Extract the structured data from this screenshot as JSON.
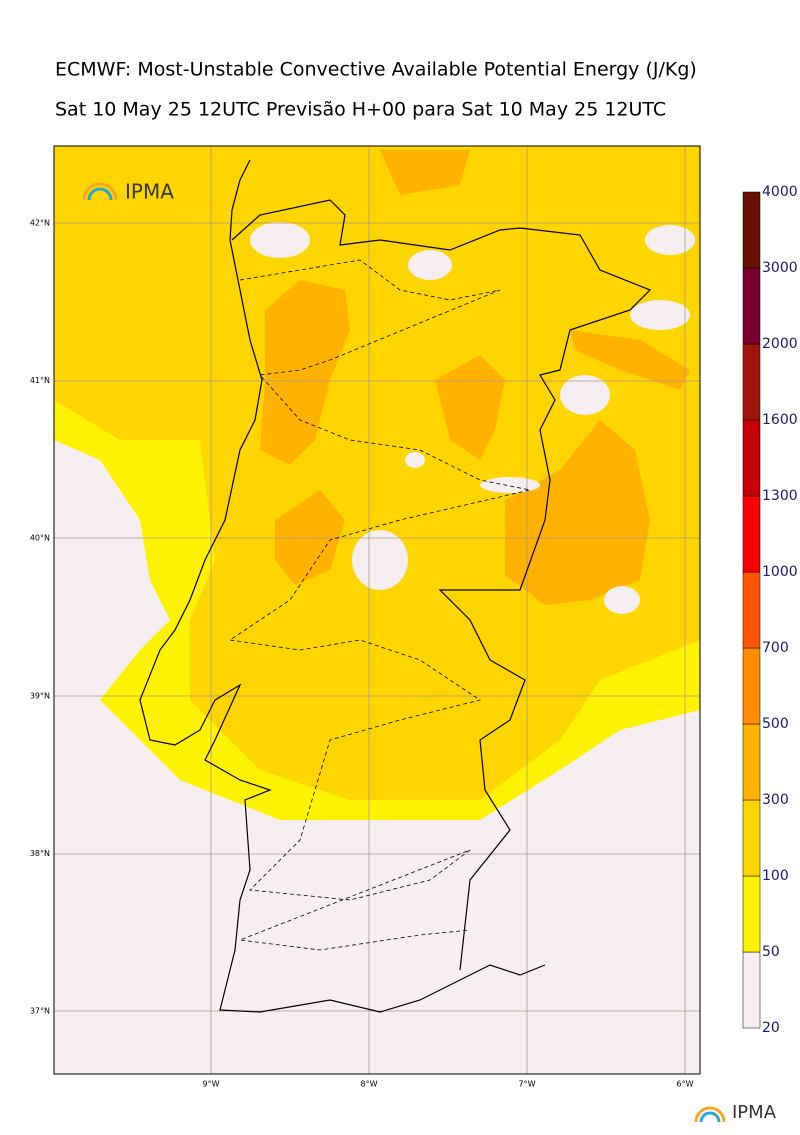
{
  "header": {
    "title": "ECMWF: Most-Unstable Convective Available Potential Energy (J/Kg)",
    "subtitle": "Sat 10 May 25 12UTC Previsão H+00 para Sat 10 May 25 12UTC"
  },
  "map": {
    "lat_labels": [
      "42°N",
      "41°N",
      "40°N",
      "39°N",
      "38°N",
      "37°N"
    ],
    "lon_labels": [
      "9°W",
      "8°W",
      "7°W",
      "6°W"
    ],
    "logo": "IPMA"
  },
  "colorbar": {
    "labels": [
      "20",
      "50",
      "100",
      "300",
      "500",
      "700",
      "1000",
      "1300",
      "1600",
      "2000",
      "3000",
      "4000"
    ],
    "colors": [
      "#f6eef1",
      "#fff200",
      "#ffd500",
      "#ffb300",
      "#ff8c00",
      "#ff5500",
      "#ff0000",
      "#c80000",
      "#9e1408",
      "#7a0030",
      "#6a1000"
    ]
  },
  "footer": {
    "logo": "IPMA"
  }
}
